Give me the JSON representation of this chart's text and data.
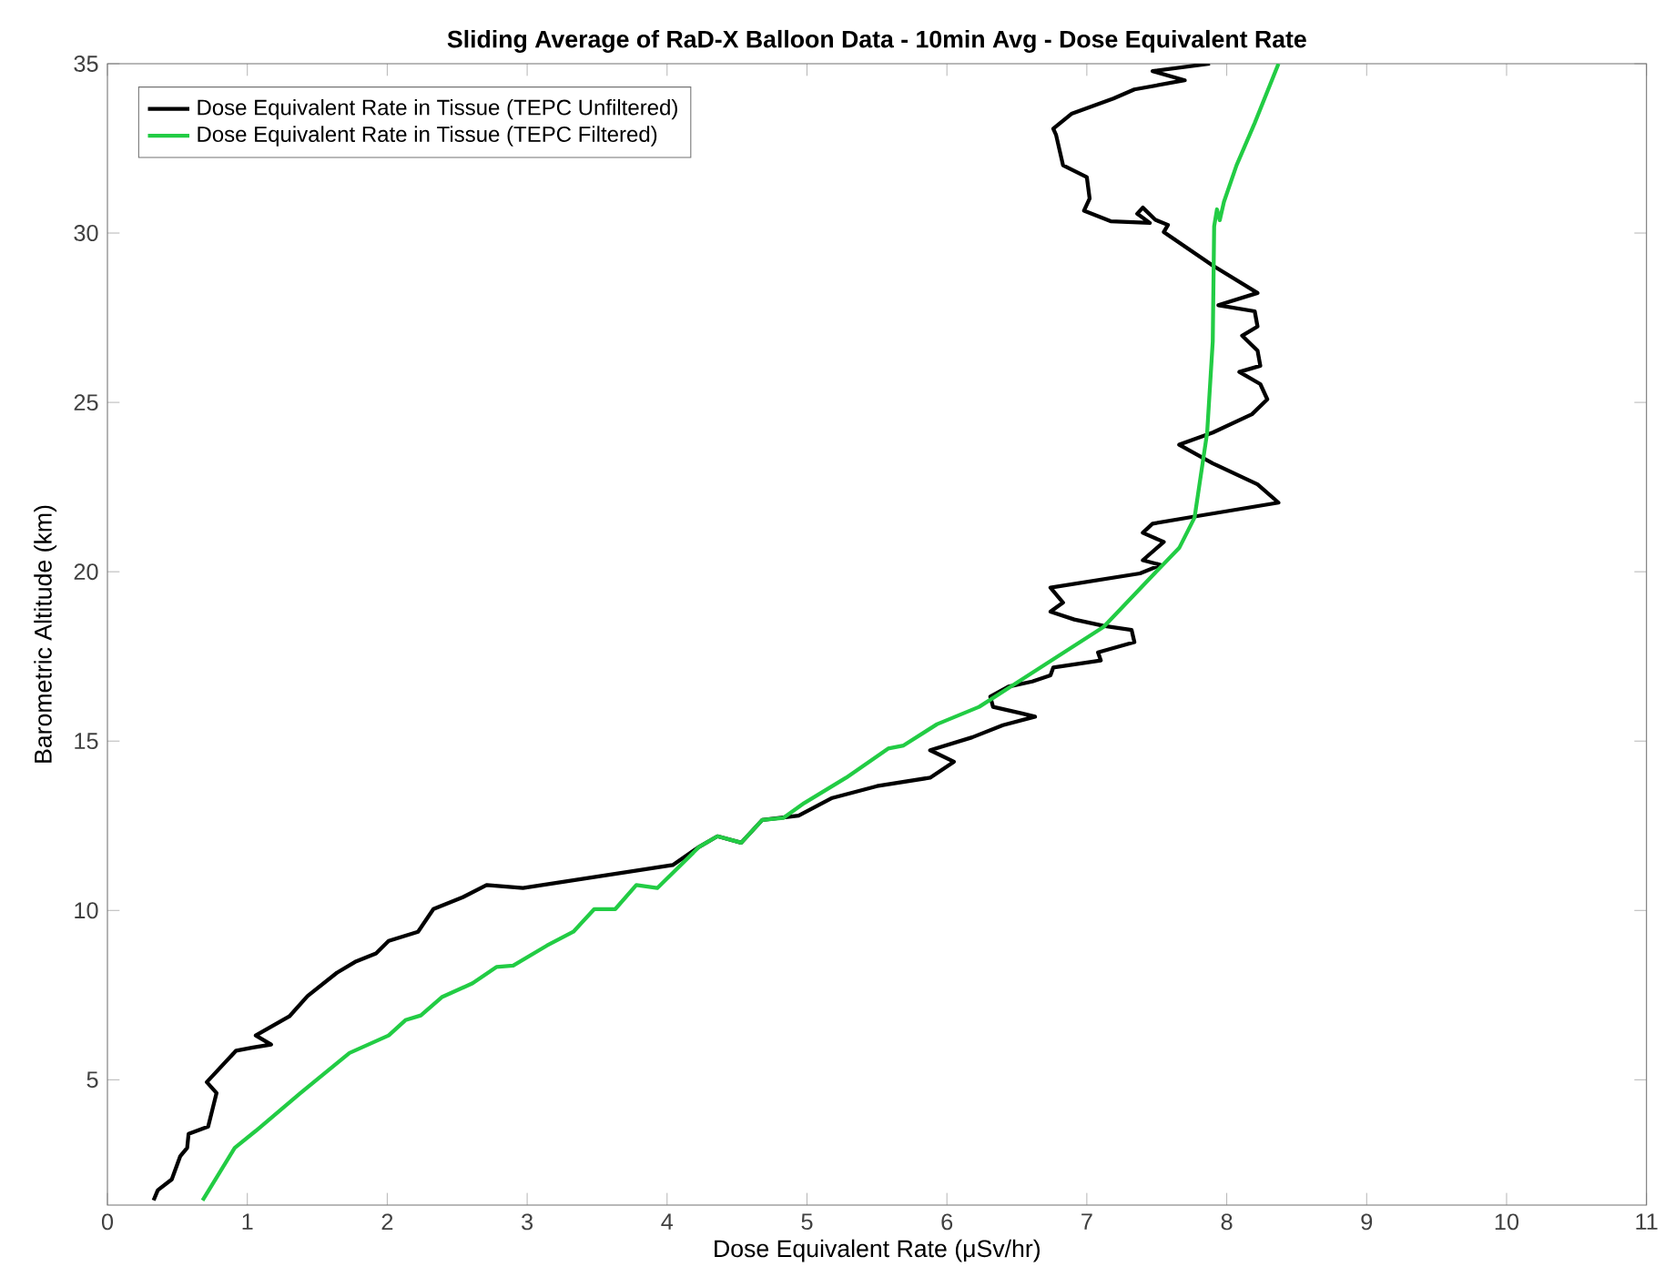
{
  "chart_data": {
    "type": "line",
    "title": "Sliding Average of RaD-X Balloon Data - 10min Avg - Dose Equivalent Rate",
    "xlabel": "Dose Equivalent Rate (μSv/hr)",
    "ylabel": "Barometric Altitude (km)",
    "xlim": [
      0,
      11
    ],
    "ylim": [
      1.3,
      35
    ],
    "xticks": [
      0,
      1,
      2,
      3,
      4,
      5,
      6,
      7,
      8,
      9,
      10,
      11
    ],
    "yticks": [
      5,
      10,
      15,
      20,
      25,
      30,
      35
    ],
    "grid": false,
    "legend": "top left",
    "line_style": "solid",
    "marker": "none",
    "series": [
      {
        "name": "Dose Equivalent Rate in Tissue (TEPC Unfiltered)",
        "color": "#000000",
        "x": [
          0.33,
          0.36,
          0.46,
          0.52,
          0.57,
          0.58,
          0.72,
          0.78,
          0.71,
          0.92,
          1.04,
          1.17,
          1.06,
          1.3,
          1.43,
          1.64,
          1.77,
          1.92,
          2.01,
          2.22,
          2.33,
          2.54,
          2.71,
          2.97,
          4.04,
          4.23,
          4.36,
          4.53,
          4.68,
          4.94,
          5.18,
          5.5,
          5.88,
          6.05,
          5.88,
          6.18,
          6.4,
          6.63,
          6.53,
          6.33,
          6.31,
          6.44,
          6.61,
          6.74,
          6.76,
          7.1,
          7.08,
          7.34,
          7.32,
          7.12,
          6.91,
          6.74,
          6.83,
          6.74,
          7.38,
          7.53,
          7.4,
          7.55,
          7.4,
          7.47,
          7.77,
          8.37,
          8.22,
          7.9,
          7.66,
          7.9,
          8.18,
          8.29,
          8.24,
          8.09,
          8.24,
          8.22,
          8.11,
          8.22,
          8.2,
          7.94,
          8.22,
          7.9,
          7.55,
          7.58,
          7.49,
          7.4,
          7.36,
          7.45,
          7.17,
          6.98,
          7.02,
          7.0,
          6.83,
          6.78,
          6.76,
          6.89,
          7.19,
          7.34,
          7.7,
          7.47,
          7.88
        ],
        "values": [
          1.44,
          1.74,
          2.06,
          2.74,
          2.99,
          3.4,
          3.62,
          4.61,
          4.93,
          5.86,
          5.95,
          6.04,
          6.31,
          6.87,
          7.47,
          8.16,
          8.48,
          8.73,
          9.1,
          9.37,
          10.04,
          10.39,
          10.75,
          10.66,
          11.34,
          11.88,
          12.19,
          12.0,
          12.67,
          12.8,
          13.32,
          13.67,
          13.92,
          14.39,
          14.73,
          15.11,
          15.47,
          15.72,
          15.82,
          16.01,
          16.31,
          16.61,
          16.76,
          16.94,
          17.17,
          17.38,
          17.62,
          17.92,
          18.28,
          18.4,
          18.59,
          18.82,
          19.09,
          19.53,
          19.95,
          20.2,
          20.34,
          20.88,
          21.15,
          21.42,
          21.63,
          22.04,
          22.58,
          23.2,
          23.75,
          24.11,
          24.65,
          25.09,
          25.54,
          25.9,
          26.08,
          26.53,
          26.97,
          27.24,
          27.69,
          27.87,
          28.23,
          29.04,
          30.03,
          30.24,
          30.39,
          30.75,
          30.57,
          30.3,
          30.35,
          30.66,
          31.02,
          31.65,
          32.0,
          32.9,
          33.08,
          33.52,
          33.97,
          34.24,
          34.51,
          34.78,
          35.0
        ]
      },
      {
        "name": "Dose Equivalent Rate in Tissue (TEPC Filtered)",
        "color": "#22cc44",
        "x": [
          0.68,
          0.91,
          1.06,
          1.38,
          1.73,
          2.01,
          2.13,
          2.24,
          2.39,
          2.61,
          2.78,
          2.9,
          3.14,
          3.33,
          3.48,
          3.63,
          3.78,
          3.93,
          4.23,
          4.36,
          4.53,
          4.68,
          4.83,
          4.98,
          5.28,
          5.58,
          5.69,
          5.93,
          6.23,
          6.48,
          7.12,
          7.47,
          7.66,
          7.77,
          7.86,
          7.9,
          7.91,
          7.93,
          7.95,
          7.98,
          8.07,
          8.2,
          8.37
        ],
        "values": [
          1.44,
          2.99,
          3.49,
          4.61,
          5.79,
          6.31,
          6.76,
          6.9,
          7.44,
          7.85,
          8.33,
          8.37,
          8.96,
          9.37,
          10.04,
          10.04,
          10.75,
          10.66,
          11.88,
          12.19,
          12.0,
          12.67,
          12.73,
          13.17,
          13.92,
          14.78,
          14.87,
          15.5,
          16.01,
          16.67,
          18.37,
          19.89,
          20.7,
          21.6,
          24.11,
          26.8,
          30.2,
          30.7,
          30.38,
          30.92,
          32.0,
          33.25,
          35.0
        ]
      }
    ]
  }
}
